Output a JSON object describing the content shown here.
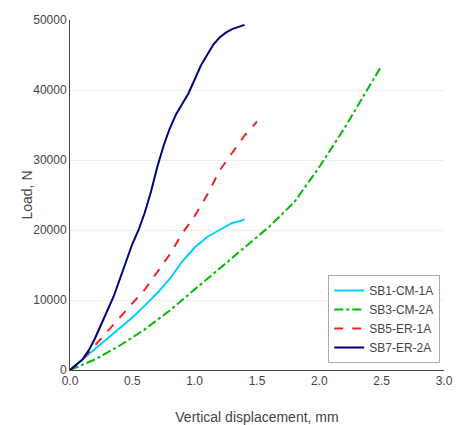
{
  "chart_data": {
    "type": "line",
    "xlabel": "Vertical displacement, mm",
    "ylabel": "Load, N",
    "xlim": [
      0.0,
      3.0
    ],
    "ylim": [
      0,
      50000
    ],
    "xticks": [
      {
        "value": 0.0,
        "label": "0.0"
      },
      0.5,
      {
        "value": 1.0,
        "label": "1.0"
      },
      1.5,
      {
        "value": 2.0,
        "label": "2.0"
      },
      2.5,
      {
        "value": 3.0,
        "label": "3.0"
      }
    ],
    "yticks": [
      0,
      10000,
      20000,
      30000,
      40000,
      50000
    ],
    "grid": "y",
    "legend": "lower right",
    "series": [
      {
        "name": "SB1-CM-1A",
        "color": "#00CFFF",
        "line_style": "solid",
        "x": [
          0.0,
          0.1,
          0.2,
          0.3,
          0.4,
          0.5,
          0.6,
          0.7,
          0.8,
          0.9,
          1.0,
          1.1,
          1.2,
          1.3,
          1.35,
          1.4
        ],
        "values": [
          0,
          1500,
          3000,
          4500,
          6000,
          7500,
          9200,
          11000,
          13000,
          15500,
          17500,
          19000,
          20000,
          21000,
          21200,
          21500
        ]
      },
      {
        "name": "SB3-CM-2A",
        "color": "#00BB00",
        "line_style": "dashdot",
        "x": [
          0.0,
          0.2,
          0.4,
          0.6,
          0.8,
          1.0,
          1.2,
          1.4,
          1.6,
          1.8,
          2.0,
          2.2,
          2.4,
          2.5
        ],
        "values": [
          0,
          1500,
          3500,
          5800,
          8500,
          11500,
          14500,
          17500,
          20500,
          24000,
          29000,
          34500,
          40500,
          43500
        ]
      },
      {
        "name": "SB5-ER-1A",
        "color": "#EE2222",
        "line_style": "dashed",
        "x": [
          0.0,
          0.1,
          0.2,
          0.3,
          0.4,
          0.5,
          0.6,
          0.7,
          0.8,
          0.9,
          1.0,
          1.1,
          1.2,
          1.3,
          1.4,
          1.5
        ],
        "values": [
          0,
          1500,
          3500,
          5500,
          7500,
          9500,
          11500,
          14000,
          16500,
          19500,
          22000,
          25000,
          28500,
          31000,
          33500,
          35500
        ]
      },
      {
        "name": "SB7-ER-2A",
        "color": "#000080",
        "line_style": "solid",
        "x": [
          0.0,
          0.05,
          0.1,
          0.15,
          0.2,
          0.25,
          0.3,
          0.35,
          0.4,
          0.45,
          0.5,
          0.55,
          0.6,
          0.65,
          0.7,
          0.75,
          0.8,
          0.85,
          0.9,
          0.95,
          1.0,
          1.05,
          1.1,
          1.15,
          1.2,
          1.25,
          1.3,
          1.35,
          1.4
        ],
        "values": [
          0,
          700,
          1500,
          2800,
          4500,
          6500,
          8500,
          10500,
          13000,
          15500,
          18000,
          20000,
          22500,
          25500,
          29000,
          32000,
          34500,
          36500,
          38000,
          39500,
          41500,
          43500,
          45000,
          46500,
          47500,
          48200,
          48700,
          49000,
          49300
        ]
      }
    ]
  }
}
